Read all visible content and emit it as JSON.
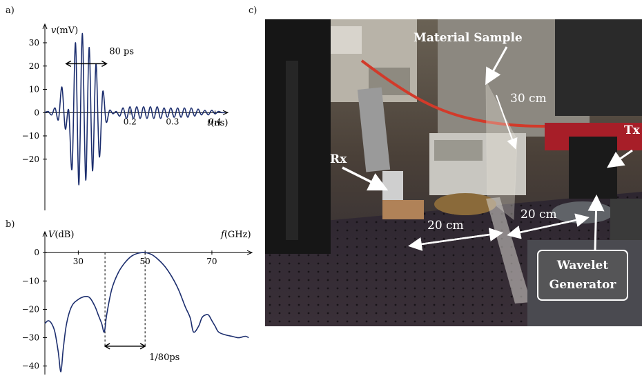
{
  "panels": {
    "a": "a)",
    "b": "b)",
    "c": "c)"
  },
  "chart_data": [
    {
      "type": "line",
      "panel": "a",
      "xlabel_var": "t",
      "xlabel_unit": "(ns)",
      "ylabel_var": "v",
      "ylabel_unit": "(mV)",
      "xlim": [
        0,
        0.43
      ],
      "ylim": [
        -42,
        38
      ],
      "xticks": [
        {
          "v": 0.2,
          "label": "0.2"
        },
        {
          "v": 0.3,
          "label": "0.3"
        },
        {
          "v": 0.4,
          "label": "0.4"
        }
      ],
      "yticks": [
        {
          "v": 30,
          "label": "30"
        },
        {
          "v": 20,
          "label": "20"
        },
        {
          "v": 10,
          "label": "10"
        },
        {
          "v": 0,
          "label": "0"
        },
        {
          "v": -10,
          "label": "−10"
        },
        {
          "v": -20,
          "label": "−20"
        }
      ],
      "series": [
        {
          "x": [
            0.0,
            0.008,
            0.016,
            0.024,
            0.032,
            0.04,
            0.048,
            0.056,
            0.064,
            0.072,
            0.08,
            0.088,
            0.096,
            0.104,
            0.112,
            0.12,
            0.128,
            0.136,
            0.144,
            0.152,
            0.16,
            0.168,
            0.176,
            0.184,
            0.192,
            0.2,
            0.208,
            0.216,
            0.224,
            0.232,
            0.24,
            0.248,
            0.256,
            0.264,
            0.272,
            0.28,
            0.288,
            0.296,
            0.304,
            0.312,
            0.32,
            0.328,
            0.336,
            0.344,
            0.352,
            0.36,
            0.368,
            0.376,
            0.384,
            0.392,
            0.4,
            0.408,
            0.416,
            0.424
          ],
          "y": [
            0,
            0.5,
            -1,
            2,
            -3,
            11,
            -7,
            1,
            -24,
            30,
            -31,
            34,
            -29,
            28,
            -25,
            21,
            -19,
            9,
            -4,
            1,
            -0.5,
            0.5,
            -1.5,
            2,
            -2.5,
            2.5,
            -2.5,
            2.5,
            -2.5,
            2.5,
            -2.5,
            2.5,
            -2.5,
            2.5,
            -2.5,
            2,
            -2,
            2,
            -2,
            2,
            -2,
            2,
            -2,
            2,
            -1.5,
            1.5,
            -1,
            1,
            -1,
            1,
            -0.5,
            0.5,
            0,
            0
          ]
        }
      ],
      "annotations": [
        {
          "text": "80 ps",
          "x1": 0.05,
          "x2": 0.145,
          "y": 21
        }
      ]
    },
    {
      "type": "line",
      "panel": "b",
      "xlabel_var": "f",
      "xlabel_unit": "(GHz)",
      "ylabel_var": "V",
      "ylabel_unit": "(dB)",
      "xlim": [
        20,
        82
      ],
      "ylim": [
        -43,
        2
      ],
      "xticks": [
        {
          "v": 30,
          "label": "30"
        },
        {
          "v": 50,
          "label": "50"
        },
        {
          "v": 70,
          "label": "70"
        }
      ],
      "yticks": [
        {
          "v": 0,
          "label": "0"
        },
        {
          "v": -10,
          "label": "−10"
        },
        {
          "v": -20,
          "label": "−20"
        },
        {
          "v": -30,
          "label": "−30"
        },
        {
          "v": -40,
          "label": "−40"
        }
      ],
      "series": [
        {
          "x": [
            20,
            21,
            22,
            23,
            24,
            24.8,
            25.5,
            26.5,
            28,
            30,
            32,
            33.5,
            35,
            36,
            37,
            37.8,
            38.5,
            40,
            42,
            44,
            46,
            48,
            50,
            52,
            54,
            56,
            58,
            60,
            62,
            63.5,
            64.5,
            66,
            67,
            68,
            69,
            70,
            71,
            72,
            74,
            76,
            78,
            80,
            81
          ],
          "y": [
            -25,
            -24,
            -25,
            -28,
            -35,
            -42,
            -34,
            -25,
            -19,
            -16.5,
            -15.5,
            -16,
            -19,
            -22,
            -25,
            -28,
            -22,
            -13,
            -7,
            -3.5,
            -1.2,
            -0.2,
            0,
            -0.7,
            -2.5,
            -5,
            -8.5,
            -13,
            -19,
            -23,
            -28,
            -26,
            -23,
            -22,
            -22,
            -24,
            -26,
            -28,
            -29,
            -29.5,
            -30,
            -29.5,
            -30
          ]
        }
      ],
      "guides": [
        38,
        50
      ],
      "annotations": [
        {
          "text": "1/80ps",
          "x1": 38,
          "x2": 50,
          "y": -33
        }
      ]
    }
  ],
  "photo": {
    "labels": {
      "material_sample": "Material Sample",
      "dist_30": "30 cm",
      "tx": "Tx",
      "rx": "Rx",
      "dist_20_left": "20 cm",
      "dist_20_right": "20 cm",
      "wavelet_line1": "Wavelet",
      "wavelet_line2": "Generator"
    }
  }
}
